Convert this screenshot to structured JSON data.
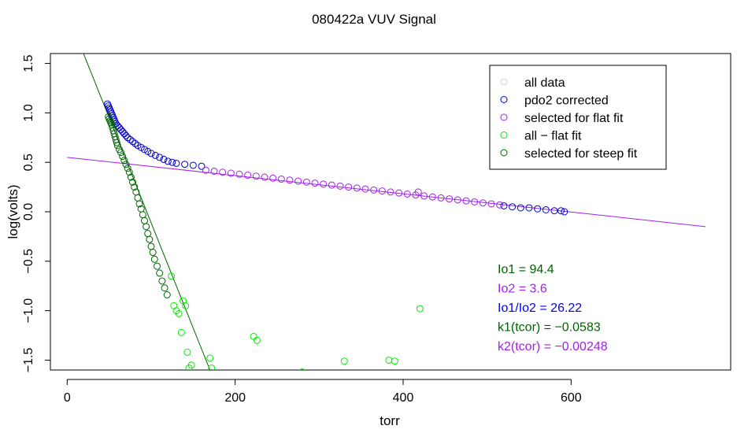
{
  "chart_data": {
    "type": "scatter",
    "title": "080422a   VUV Signal",
    "xlabel": "torr",
    "ylabel": "log(volts)",
    "xlim": [
      -20,
      790
    ],
    "ylim": [
      -1.6,
      1.6
    ],
    "x_ticks": [
      0,
      200,
      400,
      600
    ],
    "x_tick_labels": [
      "0",
      "200",
      "400",
      "600"
    ],
    "y_ticks": [
      -1.5,
      -1.0,
      -0.5,
      0.0,
      0.5,
      1.0,
      1.5
    ],
    "y_tick_labels": [
      "−1.5",
      "−1.0",
      "−0.5",
      "0.0",
      "0.5",
      "1.0",
      "1.5"
    ],
    "legend_position": "top-right",
    "legend": [
      {
        "label": "all data",
        "color": "#add8e6"
      },
      {
        "label": "pdo2 corrected",
        "color": "#0000cd"
      },
      {
        "label": "selected for flat fit",
        "color": "#a020f0"
      },
      {
        "label": "all − flat fit",
        "color": "#00ee00"
      },
      {
        "label": "selected for steep fit",
        "color": "#006400"
      }
    ],
    "fit_lines": [
      {
        "name": "flat fit",
        "color": "#a020f0",
        "x": [
          0,
          760
        ],
        "y": [
          0.55,
          -0.15
        ]
      },
      {
        "name": "steep fit",
        "color": "#006400",
        "x": [
          18,
          170
        ],
        "y": [
          1.63,
          -1.6
        ]
      }
    ],
    "series": [
      {
        "name": "pdo2 corrected",
        "color": "#0000cd",
        "points": [
          [
            48,
            1.09
          ],
          [
            49,
            1.07
          ],
          [
            50,
            1.05
          ],
          [
            51,
            1.03
          ],
          [
            52,
            1.01
          ],
          [
            53,
            0.99
          ],
          [
            54,
            0.97
          ],
          [
            55,
            0.95
          ],
          [
            56,
            0.93
          ],
          [
            57,
            0.91
          ],
          [
            58,
            0.89
          ],
          [
            60,
            0.87
          ],
          [
            62,
            0.85
          ],
          [
            64,
            0.83
          ],
          [
            66,
            0.81
          ],
          [
            68,
            0.79
          ],
          [
            70,
            0.77
          ],
          [
            72,
            0.75
          ],
          [
            75,
            0.73
          ],
          [
            78,
            0.71
          ],
          [
            81,
            0.69
          ],
          [
            84,
            0.67
          ],
          [
            88,
            0.65
          ],
          [
            92,
            0.63
          ],
          [
            96,
            0.61
          ],
          [
            100,
            0.59
          ],
          [
            105,
            0.57
          ],
          [
            110,
            0.55
          ],
          [
            115,
            0.53
          ],
          [
            120,
            0.51
          ],
          [
            125,
            0.5
          ],
          [
            130,
            0.49
          ],
          [
            140,
            0.48
          ],
          [
            150,
            0.47
          ],
          [
            160,
            0.46
          ],
          [
            520,
            0.06
          ],
          [
            530,
            0.05
          ],
          [
            540,
            0.04
          ],
          [
            550,
            0.04
          ],
          [
            560,
            0.03
          ],
          [
            570,
            0.02
          ],
          [
            580,
            0.01
          ],
          [
            588,
            0.01
          ],
          [
            592,
            0.0
          ]
        ]
      },
      {
        "name": "selected for flat fit",
        "color": "#a020f0",
        "points": [
          [
            165,
            0.42
          ],
          [
            175,
            0.41
          ],
          [
            185,
            0.4
          ],
          [
            195,
            0.39
          ],
          [
            205,
            0.38
          ],
          [
            215,
            0.37
          ],
          [
            225,
            0.36
          ],
          [
            235,
            0.35
          ],
          [
            245,
            0.34
          ],
          [
            255,
            0.33
          ],
          [
            265,
            0.32
          ],
          [
            275,
            0.31
          ],
          [
            285,
            0.3
          ],
          [
            295,
            0.29
          ],
          [
            305,
            0.28
          ],
          [
            315,
            0.27
          ],
          [
            325,
            0.26
          ],
          [
            335,
            0.25
          ],
          [
            345,
            0.24
          ],
          [
            355,
            0.23
          ],
          [
            365,
            0.22
          ],
          [
            375,
            0.21
          ],
          [
            385,
            0.2
          ],
          [
            395,
            0.19
          ],
          [
            405,
            0.18
          ],
          [
            415,
            0.17
          ],
          [
            418,
            0.2
          ],
          [
            425,
            0.16
          ],
          [
            435,
            0.15
          ],
          [
            445,
            0.14
          ],
          [
            455,
            0.13
          ],
          [
            465,
            0.12
          ],
          [
            475,
            0.11
          ],
          [
            485,
            0.1
          ],
          [
            495,
            0.09
          ],
          [
            505,
            0.08
          ],
          [
            515,
            0.07
          ]
        ]
      },
      {
        "name": "selected for steep fit",
        "color": "#006400",
        "points": [
          [
            49,
            0.96
          ],
          [
            50,
            0.94
          ],
          [
            51,
            0.92
          ],
          [
            52,
            0.9
          ],
          [
            53,
            0.88
          ],
          [
            54,
            0.85
          ],
          [
            55,
            0.82
          ],
          [
            56,
            0.79
          ],
          [
            57,
            0.76
          ],
          [
            58,
            0.73
          ],
          [
            59,
            0.7
          ],
          [
            60,
            0.67
          ],
          [
            62,
            0.63
          ],
          [
            64,
            0.6
          ],
          [
            66,
            0.56
          ],
          [
            68,
            0.52
          ],
          [
            70,
            0.48
          ],
          [
            72,
            0.44
          ],
          [
            74,
            0.4
          ],
          [
            76,
            0.35
          ],
          [
            78,
            0.3
          ],
          [
            80,
            0.25
          ],
          [
            82,
            0.2
          ],
          [
            84,
            0.14
          ],
          [
            86,
            0.08
          ],
          [
            88,
            0.03
          ],
          [
            90,
            -0.03
          ],
          [
            92,
            -0.09
          ],
          [
            94,
            -0.15
          ],
          [
            96,
            -0.22
          ],
          [
            98,
            -0.28
          ],
          [
            100,
            -0.35
          ],
          [
            102,
            -0.41
          ],
          [
            104,
            -0.48
          ],
          [
            107,
            -0.55
          ],
          [
            110,
            -0.62
          ],
          [
            113,
            -0.7
          ],
          [
            116,
            -0.77
          ],
          [
            119,
            -0.84
          ]
        ]
      },
      {
        "name": "all − flat fit",
        "color": "#00ee00",
        "points": [
          [
            124,
            -0.65
          ],
          [
            127,
            -0.95
          ],
          [
            130,
            -1.0
          ],
          [
            133,
            -1.03
          ],
          [
            136,
            -1.22
          ],
          [
            138,
            -0.9
          ],
          [
            141,
            -0.95
          ],
          [
            143,
            -1.42
          ],
          [
            145,
            -1.58
          ],
          [
            148,
            -1.55
          ],
          [
            170,
            -1.48
          ],
          [
            172,
            -1.58
          ],
          [
            222,
            -1.26
          ],
          [
            226,
            -1.3
          ],
          [
            280,
            -1.62
          ],
          [
            330,
            -1.51
          ],
          [
            383,
            -1.5
          ],
          [
            390,
            -1.51
          ],
          [
            420,
            -0.98
          ]
        ]
      }
    ],
    "annotations": [
      {
        "label": "Io1 =  94.4",
        "color": "#006400"
      },
      {
        "label": "Io2 =  3.6",
        "color": "#a020f0"
      },
      {
        "label": "Io1/Io2 =  26.22",
        "color": "#0000ff"
      },
      {
        "label": "k1(tcor) =  −0.0583",
        "color": "#006400"
      },
      {
        "label": "k2(tcor) =  −0.00248",
        "color": "#a020f0"
      }
    ]
  }
}
